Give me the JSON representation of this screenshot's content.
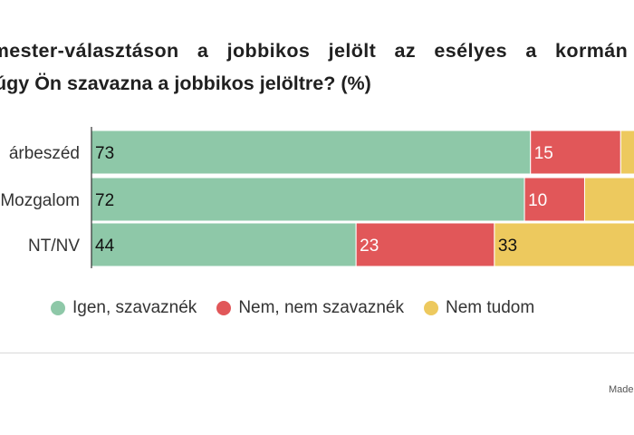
{
  "chart_data": {
    "type": "bar",
    "orientation": "horizontal",
    "stacked": true,
    "title_line1": "rmester-választáson a jobbikos jelölt az esélyes a kormán",
    "title_line2": "úgy Ön szavazna a jobbikos jelöltre? (%)",
    "categories": [
      "Párbeszéd",
      "Mozgalom",
      "NT/NV"
    ],
    "category_labels": [
      "árbeszéd",
      "Mozgalom",
      "NT/NV"
    ],
    "series": [
      {
        "name": "Igen, szavaznék",
        "color": "#8ec8a8",
        "values": [
          73,
          72,
          44
        ]
      },
      {
        "name": "Nem, nem szavaznék",
        "color": "#e15759",
        "values": [
          15,
          10,
          23
        ]
      },
      {
        "name": "Nem tudom",
        "color": "#edc95e",
        "values": [
          12,
          18,
          33
        ]
      }
    ],
    "value_labels": [
      [
        "73",
        "15",
        ""
      ],
      [
        "72",
        "10",
        ""
      ],
      [
        "44",
        "23",
        "33"
      ]
    ],
    "xlim": [
      0,
      100
    ],
    "legend_position": "bottom"
  },
  "credit": "Made"
}
